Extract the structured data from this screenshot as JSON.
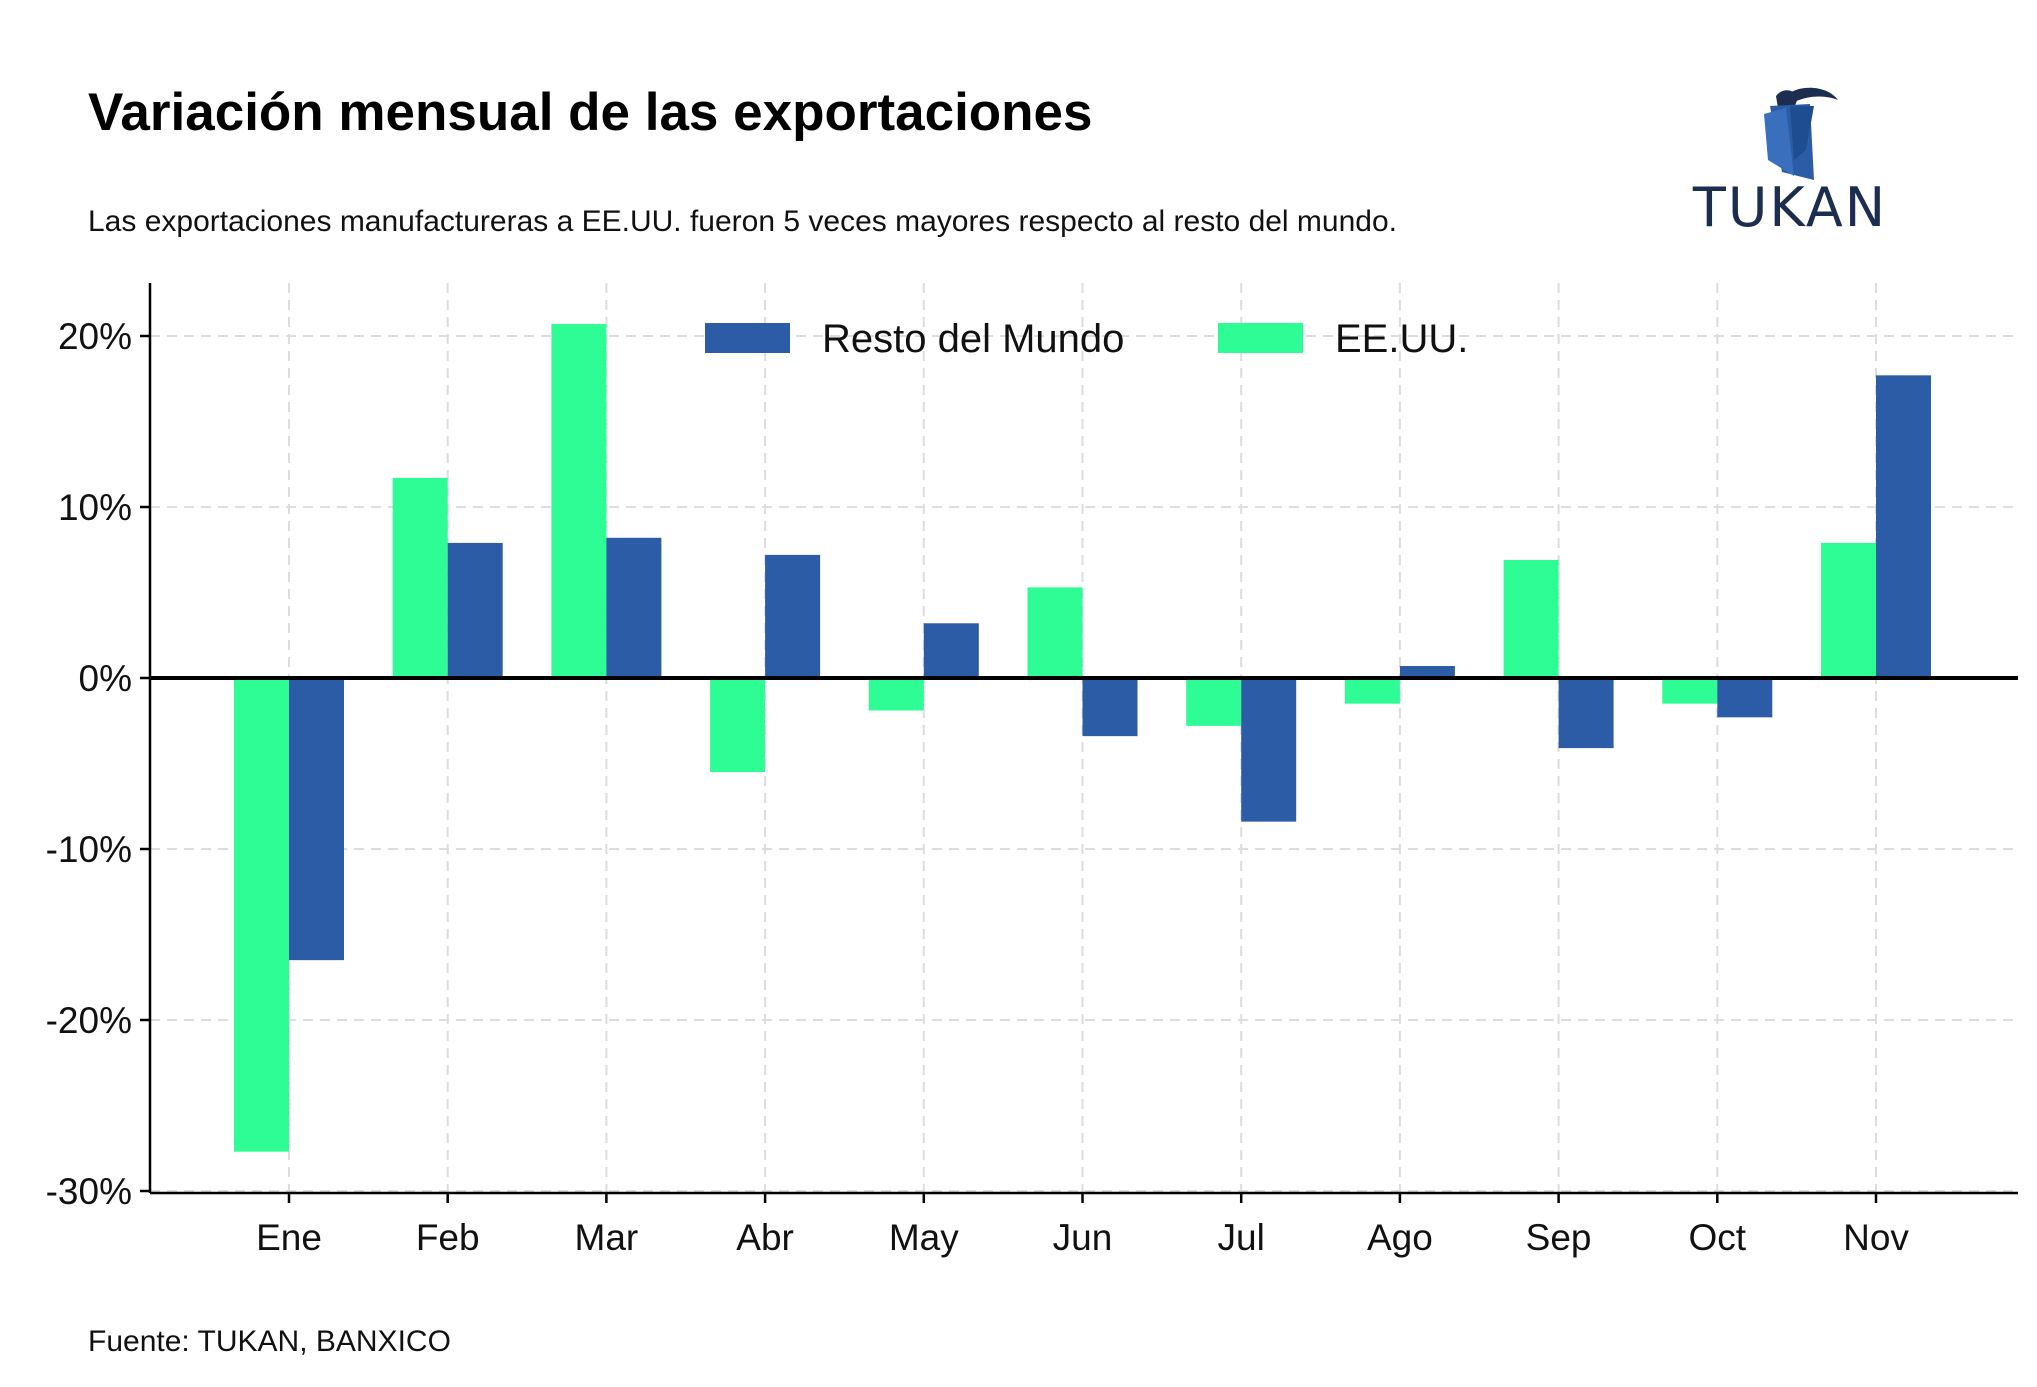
{
  "header": {
    "title": "Variación mensual de las exportaciones",
    "subtitle": "Las exportaciones manufactureras a EE.UU. fueron 5 veces mayores respecto al resto del mundo."
  },
  "footer": {
    "source": "Fuente: TUKAN, BANXICO"
  },
  "logo": {
    "text": "TUKAN",
    "icon": "toucan-logo-icon",
    "color": "#1d2d4f"
  },
  "chart_data": {
    "type": "bar",
    "title": "Variación mensual de las exportaciones",
    "subtitle": "Las exportaciones manufactureras a EE.UU. fueron 5 veces mayores respecto al resto del mundo.",
    "categories": [
      "Ene",
      "Feb",
      "Mar",
      "Abr",
      "May",
      "Jun",
      "Jul",
      "Ago",
      "Sep",
      "Oct",
      "Nov"
    ],
    "series": [
      {
        "name": "EE.UU.",
        "color": "#2efc94",
        "values": [
          -27.7,
          11.7,
          20.7,
          -5.5,
          -1.9,
          5.3,
          -2.8,
          -1.5,
          6.9,
          -1.5,
          7.9
        ]
      },
      {
        "name": "Resto del Mundo",
        "color": "#2b5ca5",
        "values": [
          -16.5,
          7.9,
          8.2,
          7.2,
          3.2,
          -3.4,
          -8.4,
          0.7,
          -4.1,
          -2.3,
          17.7
        ]
      }
    ],
    "legend_order": [
      "Resto del Mundo",
      "EE.UU."
    ],
    "yticks": [
      20,
      10,
      0,
      -10,
      -20,
      -30
    ],
    "ytick_labels": [
      "20%",
      "10%",
      "0%",
      "-10%",
      "-20%",
      "-30%"
    ],
    "ylim": [
      -30,
      23
    ],
    "xlabel": "",
    "ylabel": "",
    "grid": true,
    "legend_position": "top-center",
    "zero_line_color": "#000000",
    "grid_color": "#dddddd"
  }
}
